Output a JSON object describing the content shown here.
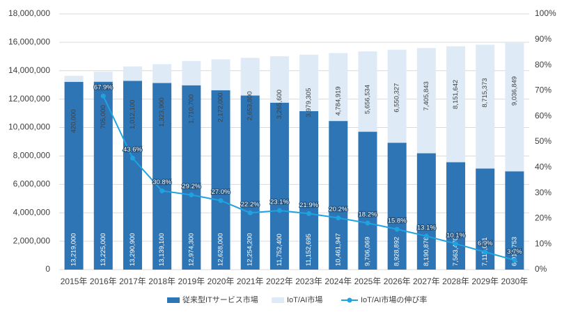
{
  "chart_data": {
    "type": "bar",
    "stacked": true,
    "categories": [
      "2015年",
      "2016年",
      "2017年",
      "2018年",
      "2019年",
      "2020年",
      "2021年",
      "2022年",
      "2023年",
      "2024年",
      "2025年",
      "2026年",
      "2027年",
      "2028年",
      "2029年",
      "2030年"
    ],
    "series": [
      {
        "name": "従来型ITサービス市場",
        "color": "#2e75b6",
        "type": "bar",
        "values": [
          13219000,
          13225000,
          13290900,
          13139100,
          12974300,
          12628000,
          12254200,
          11752400,
          11152695,
          10461947,
          9706069,
          8928892,
          8190876,
          7563470,
          7115031,
          6917753
        ],
        "value_labels": [
          "13,219,000",
          "13,225,000",
          "13,290,900",
          "13,139,100",
          "12,974,300",
          "12,628,000",
          "12,254,200",
          "11,752,400",
          "11,152,695",
          "10,461,947",
          "9,706,069",
          "8,928,892",
          "8,190,876",
          "7,563,470",
          "7,115,031",
          "6,917,753"
        ]
      },
      {
        "name": "IoT/AI市場",
        "color": "#deebf7",
        "type": "bar",
        "values": [
          420000,
          705000,
          1012100,
          1323900,
          1710700,
          2172000,
          2653800,
          3265600,
          3979305,
          4784919,
          5656534,
          6550327,
          7405843,
          8151642,
          8715373,
          9036849
        ],
        "value_labels": [
          "420,000",
          "705,000",
          "1,012,100",
          "1,323,900",
          "1,710,700",
          "2,172,000",
          "2,653,800",
          "3,265,600",
          "3,979,305",
          "4,784,919",
          "5,656,534",
          "6,550,327",
          "7,405,843",
          "8,151,642",
          "8,715,373",
          "9,036,849"
        ]
      },
      {
        "name": "IoT/AI市場の伸び率",
        "color": "#1fa3e0",
        "type": "line",
        "axis": "y2",
        "values": [
          null,
          67.9,
          43.6,
          30.8,
          29.2,
          27.0,
          22.2,
          23.1,
          21.9,
          20.2,
          18.2,
          15.8,
          13.1,
          10.1,
          6.9,
          3.7
        ],
        "value_labels": [
          null,
          "67.9%",
          "43.6%",
          "30.8%",
          "29.2%",
          "27.0%",
          "22.2%",
          "23.1%",
          "21.9%",
          "20.2%",
          "18.2%",
          "15.8%",
          "13.1%",
          "10.1%",
          "6.9%",
          "3.7%"
        ]
      }
    ],
    "ylim": [
      0,
      18000000
    ],
    "yticks": [
      0,
      {
        "value": 2000000,
        "label": "2,000,000"
      },
      {
        "value": 4000000,
        "label": "4,000,000"
      },
      {
        "value": 6000000,
        "label": "6,000,000"
      },
      {
        "value": 8000000,
        "label": "8,000,000"
      },
      {
        "value": 10000000,
        "label": "10,000,000"
      },
      {
        "value": 12000000,
        "label": "12,000,000"
      },
      {
        "value": 14000000,
        "label": "14,000,000"
      },
      {
        "value": 16000000,
        "label": "16,000,000"
      },
      {
        "value": 18000000,
        "label": "18,000,000"
      }
    ],
    "y2lim": [
      0,
      100
    ],
    "y2ticks": [
      {
        "value": 0,
        "label": "0%"
      },
      {
        "value": 10,
        "label": "10%"
      },
      {
        "value": 20,
        "label": "20%"
      },
      {
        "value": 30,
        "label": "30%"
      },
      {
        "value": 40,
        "label": "40%"
      },
      {
        "value": 50,
        "label": "50%"
      },
      {
        "value": 60,
        "label": "60%"
      },
      {
        "value": 70,
        "label": "70%"
      },
      {
        "value": 80,
        "label": "80%"
      },
      {
        "value": 90,
        "label": "90%"
      },
      {
        "value": 100,
        "label": "100%"
      }
    ],
    "grid": true,
    "legend": "bottom"
  }
}
